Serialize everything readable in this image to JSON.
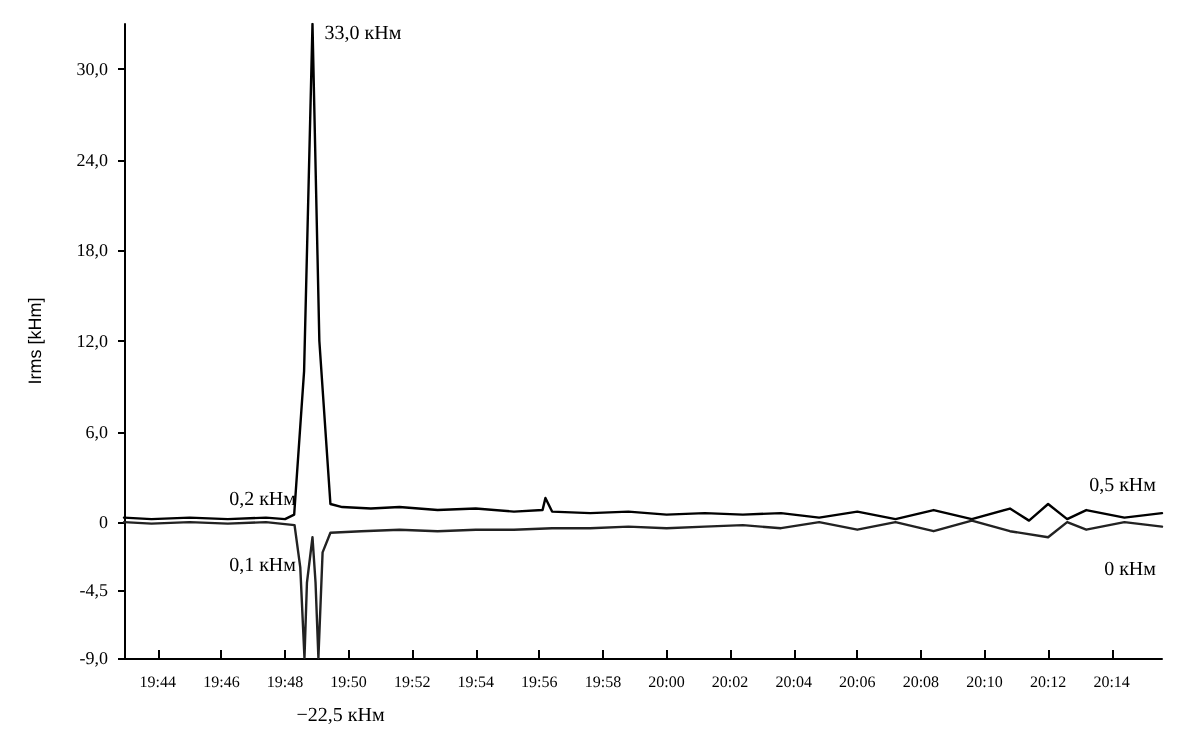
{
  "chart_data": {
    "type": "line",
    "ylabel": "Irms [kHm]",
    "marker": "none",
    "line_style": "solid",
    "grid": false,
    "xlim": [
      19.7156,
      20.2597
    ],
    "ylim": [
      -9,
      33
    ],
    "xticks": [
      {
        "value": 19.7333,
        "label": "19:44"
      },
      {
        "value": 19.7667,
        "label": "19:46"
      },
      {
        "value": 19.8,
        "label": "19:48"
      },
      {
        "value": 19.8333,
        "label": "19:50"
      },
      {
        "value": 19.8667,
        "label": "19:52"
      },
      {
        "value": 19.9,
        "label": "19:54"
      },
      {
        "value": 19.9333,
        "label": "19:56"
      },
      {
        "value": 19.9667,
        "label": "19:58"
      },
      {
        "value": 20,
        "label": "20:00"
      },
      {
        "value": 20.0333,
        "label": "20:02"
      },
      {
        "value": 20.0667,
        "label": "20:04"
      },
      {
        "value": 20.1,
        "label": "20:06"
      },
      {
        "value": 20.1333,
        "label": "20:08"
      },
      {
        "value": 20.1667,
        "label": "20:10"
      },
      {
        "value": 20.2,
        "label": "20:12"
      },
      {
        "value": 20.2333,
        "label": "20:14"
      }
    ],
    "yticks": [
      {
        "value": -9,
        "label": "-9,0"
      },
      {
        "value": -4.5,
        "label": "-4,5"
      },
      0,
      {
        "value": 6,
        "label": "6,0"
      },
      {
        "value": 12,
        "label": "12,0"
      },
      {
        "value": 18,
        "label": "18,0"
      },
      {
        "value": 24,
        "label": "24,0"
      },
      {
        "value": 30,
        "label": "30,0"
      }
    ],
    "annotations": [
      {
        "text": "33,0 кНм",
        "x": 19.8144,
        "y": 33
      },
      "0,2 кНм",
      "0,1 кНм",
      "0,5 кНм",
      "0 кНм",
      {
        "text": "−22,5 кНм",
        "x": 19.8144,
        "y": -9
      }
    ],
    "series": [
      {
        "color": "#000000",
        "x": [
          19.7156,
          19.73,
          19.75,
          19.77,
          19.79,
          19.8,
          19.8048,
          19.81,
          19.8144,
          19.818,
          19.8238,
          19.83,
          19.845,
          19.86,
          19.88,
          19.9,
          19.92,
          19.935,
          19.9365,
          19.94,
          19.96,
          19.98,
          20,
          20.02,
          20.04,
          20.06,
          20.08,
          20.1,
          20.12,
          20.14,
          20.16,
          20.18,
          20.19,
          20.2,
          20.21,
          20.22,
          20.24,
          20.2597
        ],
        "values": [
          0.3,
          0.2,
          0.3,
          0.2,
          0.3,
          0.2,
          0.5,
          10,
          33,
          12,
          1.2,
          1,
          0.9,
          1,
          0.8,
          0.9,
          0.7,
          0.8,
          1.6,
          0.7,
          0.6,
          0.7,
          0.5,
          0.6,
          0.5,
          0.6,
          0.3,
          0.7,
          0.2,
          0.8,
          0.2,
          0.9,
          0.1,
          1.2,
          0.2,
          0.8,
          0.3,
          0.6
        ]
      },
      {
        "color": "#222222",
        "x": [
          19.7156,
          19.73,
          19.75,
          19.77,
          19.79,
          19.805,
          19.808,
          19.8102,
          19.8115,
          19.8144,
          19.816,
          19.8175,
          19.8197,
          19.8238,
          19.84,
          19.86,
          19.88,
          19.9,
          19.92,
          19.94,
          19.96,
          19.98,
          20,
          20.02,
          20.04,
          20.06,
          20.08,
          20.1,
          20.12,
          20.14,
          20.16,
          20.18,
          20.2,
          20.21,
          20.22,
          20.24,
          20.2597
        ],
        "values": [
          0,
          -0.1,
          0,
          -0.1,
          0,
          -0.2,
          -3,
          -9,
          -4,
          -1,
          -4,
          -9,
          -2,
          -0.7,
          -0.6,
          -0.5,
          -0.6,
          -0.5,
          -0.5,
          -0.4,
          -0.4,
          -0.3,
          -0.4,
          -0.3,
          -0.2,
          -0.4,
          0,
          -0.5,
          0,
          -0.6,
          0.1,
          -0.6,
          -1,
          0,
          -0.5,
          0,
          -0.3
        ]
      }
    ]
  }
}
